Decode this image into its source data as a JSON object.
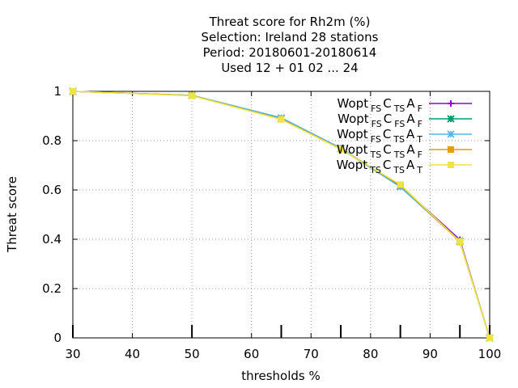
{
  "chart_data": {
    "type": "line",
    "title_lines": [
      "Threat score  for Rh2m (%)",
      "Selection: Ireland      28 stations",
      "Period: 20180601-20180614",
      "Used  12 + 01 02 ... 24"
    ],
    "xlabel": "thresholds %",
    "ylabel": "Threat score",
    "xlim": [
      30,
      100
    ],
    "ylim": [
      0,
      1
    ],
    "xticks": [
      30,
      40,
      50,
      60,
      70,
      80,
      90,
      100
    ],
    "yticks": [
      0,
      0.2,
      0.4,
      0.6,
      0.8,
      1
    ],
    "x_tick_labels": [
      "30",
      "40",
      "50",
      "60",
      "70",
      "80",
      "90",
      "100"
    ],
    "y_tick_labels": [
      "0",
      "0.2",
      "0.4",
      "0.6",
      "0.8",
      "1"
    ],
    "marked_thresholds": [
      30,
      50,
      65,
      75,
      85,
      95,
      100
    ],
    "grid": true,
    "legend_position": "top-right",
    "x": [
      30,
      50,
      65,
      75,
      85,
      95,
      100
    ],
    "series": [
      {
        "name": "Wopt FS C TS A F",
        "parts": [
          "Wopt",
          "FS",
          "C",
          "TS",
          "A",
          "F"
        ],
        "color": "#9400d3",
        "marker": "plus",
        "values": [
          1.0,
          0.983,
          0.888,
          0.768,
          0.618,
          0.398,
          0.0
        ]
      },
      {
        "name": "Wopt FS C FS A F",
        "parts": [
          "Wopt",
          "FS",
          "C",
          "FS",
          "A",
          "F"
        ],
        "color": "#009e73",
        "marker": "cross",
        "values": [
          1.0,
          0.983,
          0.889,
          0.767,
          0.614,
          0.393,
          0.0
        ]
      },
      {
        "name": "Wopt FS C TS A T",
        "parts": [
          "Wopt",
          "FS",
          "C",
          "TS",
          "A",
          "T"
        ],
        "color": "#56b4e9",
        "marker": "star",
        "values": [
          1.0,
          0.984,
          0.893,
          0.77,
          0.612,
          0.392,
          0.0
        ]
      },
      {
        "name": "Wopt TS C TS A F",
        "parts": [
          "Wopt",
          "TS",
          "C",
          "TS",
          "A",
          "F"
        ],
        "color": "#e69f00",
        "marker": "box",
        "values": [
          1.0,
          0.983,
          0.887,
          0.766,
          0.62,
          0.389,
          0.0
        ]
      },
      {
        "name": "Wopt TS C TS A T",
        "parts": [
          "Wopt",
          "TS",
          "C",
          "TS",
          "A",
          "T"
        ],
        "color": "#f0e442",
        "marker": "box",
        "values": [
          1.0,
          0.982,
          0.886,
          0.765,
          0.622,
          0.391,
          0.0
        ]
      }
    ]
  }
}
